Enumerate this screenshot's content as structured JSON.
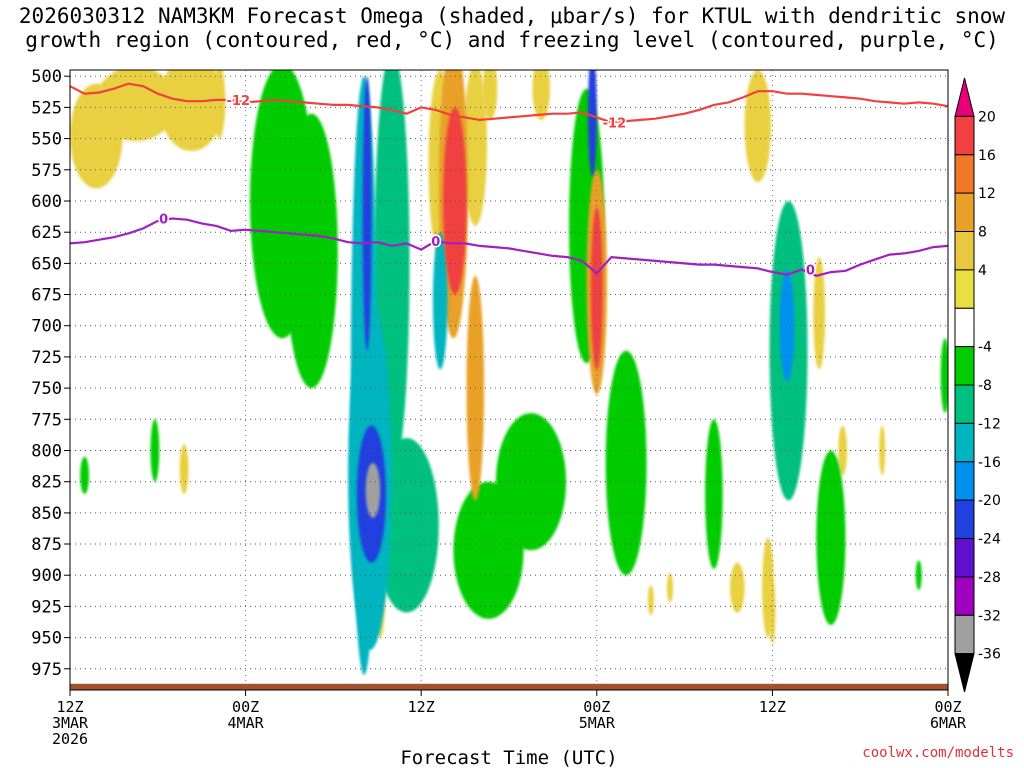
{
  "title": {
    "line1": "2026030312 NAM3KM Forecast Omega (shaded, μbar/s) for KTUL with dendritic snow",
    "line2": "growth region (contoured, red, °C) and freezing level (contoured, purple, °C)"
  },
  "credit": "coolwx.com/modelts",
  "chart_data": {
    "type": "heatmap",
    "title": "2026030312 NAM3KM Forecast Omega (shaded, μbar/s) for KTUL with dendritic snow growth region (contoured, red, °C) and freezing level (contoured, purple, °C)",
    "xlabel": "Forecast Time (UTC)",
    "ylabel": "",
    "x_ticks": [
      {
        "h": 0,
        "lines": [
          "12Z",
          "3MAR",
          "2026"
        ]
      },
      {
        "h": 12,
        "lines": [
          "00Z",
          "4MAR"
        ]
      },
      {
        "h": 24,
        "lines": [
          "12Z"
        ]
      },
      {
        "h": 36,
        "lines": [
          "00Z",
          "5MAR"
        ]
      },
      {
        "h": 48,
        "lines": [
          "12Z"
        ]
      },
      {
        "h": 60,
        "lines": [
          "00Z",
          "6MAR"
        ]
      }
    ],
    "xlim_hours": [
      0,
      60
    ],
    "y_ticks": [
      500,
      525,
      550,
      575,
      600,
      625,
      650,
      675,
      700,
      725,
      750,
      775,
      800,
      825,
      850,
      875,
      900,
      925,
      950,
      975
    ],
    "ylim": [
      992,
      495
    ],
    "colorbar": {
      "labels": [
        "20",
        "16",
        "12",
        "8",
        "4",
        "-4",
        "-8",
        "-12",
        "-16",
        "-20",
        "-24",
        "-28",
        "-32",
        "-36"
      ],
      "bins": [
        {
          "color": "#e8007a"
        },
        {
          "color": "#f04040"
        },
        {
          "color": "#f07828"
        },
        {
          "color": "#e8a028"
        },
        {
          "color": "#e8c840"
        },
        {
          "color": "#e8e040"
        },
        {
          "color": "#ffffff"
        },
        {
          "color": "#00cc00"
        },
        {
          "color": "#00c080"
        },
        {
          "color": "#00b4c0"
        },
        {
          "color": "#0090f0"
        },
        {
          "color": "#2040e0"
        },
        {
          "color": "#6010d0"
        },
        {
          "color": "#a000c0"
        },
        {
          "color": "#a0a0a0"
        },
        {
          "color": "#000000"
        }
      ]
    },
    "omega_features": [
      {
        "hour": 1.8,
        "p": 548,
        "dh": 1.8,
        "dp": 42,
        "value": 6
      },
      {
        "hour": 4.5,
        "p": 522,
        "dh": 2.8,
        "dp": 30,
        "value": 5
      },
      {
        "hour": 8.3,
        "p": 522,
        "dh": 2.2,
        "dp": 38,
        "value": 5
      },
      {
        "hour": 14.5,
        "p": 600,
        "dh": 2.2,
        "dp": 110,
        "value": -6
      },
      {
        "hour": 16.5,
        "p": 640,
        "dh": 1.8,
        "dp": 110,
        "value": -6
      },
      {
        "hour": 20.1,
        "p": 740,
        "dh": 0.9,
        "dp": 240,
        "value": -12
      },
      {
        "hour": 20.5,
        "p": 820,
        "dh": 1.5,
        "dp": 140,
        "value": -14
      },
      {
        "hour": 20.6,
        "p": 835,
        "dh": 1.0,
        "dp": 55,
        "value": -22
      },
      {
        "hour": 20.7,
        "p": 832,
        "dh": 0.5,
        "dp": 22,
        "value": -34
      },
      {
        "hour": 20.3,
        "p": 610,
        "dh": 0.3,
        "dp": 110,
        "value": -20
      },
      {
        "hour": 22.0,
        "p": 650,
        "dh": 1.2,
        "dp": 170,
        "value": -8
      },
      {
        "hour": 23.0,
        "p": 860,
        "dh": 2.2,
        "dp": 70,
        "value": -8
      },
      {
        "hour": 25.3,
        "p": 570,
        "dh": 0.8,
        "dp": 75,
        "value": 6
      },
      {
        "hour": 26.2,
        "p": 590,
        "dh": 1.0,
        "dp": 120,
        "value": 8
      },
      {
        "hour": 26.3,
        "p": 600,
        "dh": 0.8,
        "dp": 75,
        "value": 18
      },
      {
        "hour": 27.7,
        "p": 555,
        "dh": 0.8,
        "dp": 65,
        "value": 5
      },
      {
        "hour": 27.7,
        "p": 750,
        "dh": 0.6,
        "dp": 90,
        "value": 11
      },
      {
        "hour": 25.3,
        "p": 680,
        "dh": 0.5,
        "dp": 55,
        "value": -12
      },
      {
        "hour": 28.6,
        "p": 880,
        "dh": 2.4,
        "dp": 55,
        "value": -7
      },
      {
        "hour": 31.5,
        "p": 825,
        "dh": 2.4,
        "dp": 55,
        "value": -6
      },
      {
        "hour": 35.7,
        "p": 530,
        "dh": 0.3,
        "dp": 50,
        "value": -20
      },
      {
        "hour": 35.3,
        "p": 620,
        "dh": 1.2,
        "dp": 110,
        "value": -6
      },
      {
        "hour": 36.0,
        "p": 665,
        "dh": 0.7,
        "dp": 90,
        "value": 8
      },
      {
        "hour": 36.0,
        "p": 670,
        "dh": 0.4,
        "dp": 65,
        "value": 18
      },
      {
        "hour": 38.0,
        "p": 810,
        "dh": 1.4,
        "dp": 90,
        "value": -6
      },
      {
        "hour": 47.0,
        "p": 540,
        "dh": 0.9,
        "dp": 45,
        "value": 5
      },
      {
        "hour": 49.1,
        "p": 720,
        "dh": 1.3,
        "dp": 120,
        "value": -10
      },
      {
        "hour": 49.0,
        "p": 700,
        "dh": 0.5,
        "dp": 45,
        "value": -16
      },
      {
        "hour": 51.2,
        "p": 690,
        "dh": 0.4,
        "dp": 45,
        "value": 6
      },
      {
        "hour": 52.0,
        "p": 870,
        "dh": 1.0,
        "dp": 70,
        "value": -7
      },
      {
        "hour": 52.8,
        "p": 800,
        "dh": 0.3,
        "dp": 20,
        "value": 5
      },
      {
        "hour": 47.7,
        "p": 910,
        "dh": 0.4,
        "dp": 40,
        "value": 5
      },
      {
        "hour": 45.6,
        "p": 910,
        "dh": 0.5,
        "dp": 20,
        "value": 5
      },
      {
        "hour": 44.0,
        "p": 835,
        "dh": 0.6,
        "dp": 60,
        "value": -7
      },
      {
        "hour": 48.0,
        "p": 930,
        "dh": 0.2,
        "dp": 25,
        "value": 5
      },
      {
        "hour": 5.8,
        "p": 800,
        "dh": 0.3,
        "dp": 25,
        "value": -6
      },
      {
        "hour": 1.0,
        "p": 820,
        "dh": 0.3,
        "dp": 15,
        "value": -6
      },
      {
        "hour": 39.7,
        "p": 920,
        "dh": 0.2,
        "dp": 12,
        "value": 5
      },
      {
        "hour": 41.0,
        "p": 910,
        "dh": 0.2,
        "dp": 12,
        "value": 5
      },
      {
        "hour": 59.8,
        "p": 740,
        "dh": 0.3,
        "dp": 30,
        "value": -6
      },
      {
        "hour": 58.0,
        "p": 900,
        "dh": 0.2,
        "dp": 12,
        "value": -6
      },
      {
        "hour": 55.5,
        "p": 800,
        "dh": 0.2,
        "dp": 20,
        "value": 5
      },
      {
        "hour": 10.2,
        "p": 520,
        "dh": 0.4,
        "dp": 30,
        "value": 5
      },
      {
        "hour": 32.2,
        "p": 510,
        "dh": 0.6,
        "dp": 25,
        "value": 5
      },
      {
        "hour": 28.7,
        "p": 510,
        "dh": 0.5,
        "dp": 25,
        "value": 5
      },
      {
        "hour": 7.8,
        "p": 815,
        "dh": 0.3,
        "dp": 20,
        "value": 5
      },
      {
        "hour": 21.2,
        "p": 925,
        "dh": 0.3,
        "dp": 25,
        "value": 5
      }
    ],
    "isotherms": [
      {
        "name": "-12 °C",
        "color": "#f04040",
        "label": "-12",
        "points": [
          [
            0,
            508
          ],
          [
            1,
            514
          ],
          [
            2,
            513
          ],
          [
            3,
            510
          ],
          [
            4,
            506
          ],
          [
            5,
            508
          ],
          [
            6,
            514
          ],
          [
            7,
            518
          ],
          [
            8,
            520
          ],
          [
            9,
            520
          ],
          [
            10,
            519
          ],
          [
            11,
            519
          ],
          [
            12,
            521
          ],
          [
            13,
            520
          ],
          [
            14,
            519
          ],
          [
            15,
            520
          ],
          [
            16,
            521
          ],
          [
            17,
            522
          ],
          [
            18,
            523
          ],
          [
            19,
            523
          ],
          [
            20,
            524
          ],
          [
            21,
            525
          ],
          [
            22,
            527
          ],
          [
            23,
            530
          ],
          [
            24,
            525
          ],
          [
            25,
            527
          ],
          [
            26,
            531
          ],
          [
            27,
            533
          ],
          [
            28,
            535
          ],
          [
            29,
            534
          ],
          [
            30,
            533
          ],
          [
            31,
            532
          ],
          [
            32,
            531
          ],
          [
            33,
            530
          ],
          [
            34,
            530
          ],
          [
            35,
            529
          ],
          [
            36,
            533
          ],
          [
            37,
            537
          ],
          [
            38,
            536
          ],
          [
            39,
            535
          ],
          [
            40,
            534
          ],
          [
            41,
            532
          ],
          [
            42,
            530
          ],
          [
            43,
            527
          ],
          [
            44,
            523
          ],
          [
            45,
            521
          ],
          [
            46,
            517
          ],
          [
            47,
            512
          ],
          [
            48,
            512
          ],
          [
            49,
            514
          ],
          [
            50,
            514
          ],
          [
            51,
            515
          ],
          [
            52,
            516
          ],
          [
            53,
            517
          ],
          [
            54,
            518
          ],
          [
            55,
            520
          ],
          [
            56,
            521
          ],
          [
            57,
            522
          ],
          [
            58,
            521
          ],
          [
            59,
            522
          ],
          [
            60,
            524
          ]
        ],
        "label_positions": [
          [
            11.5,
            519
          ],
          [
            37.2,
            537
          ]
        ]
      },
      {
        "name": "0 °C",
        "color": "#a020c0",
        "label": "0",
        "points": [
          [
            0,
            634
          ],
          [
            1,
            633
          ],
          [
            2,
            631
          ],
          [
            3,
            629
          ],
          [
            4,
            626
          ],
          [
            5,
            622
          ],
          [
            6,
            616
          ],
          [
            7,
            614
          ],
          [
            8,
            615
          ],
          [
            9,
            618
          ],
          [
            10,
            620
          ],
          [
            11,
            624
          ],
          [
            12,
            623
          ],
          [
            13,
            624
          ],
          [
            14,
            625
          ],
          [
            15,
            626
          ],
          [
            16,
            627
          ],
          [
            17,
            628
          ],
          [
            18,
            630
          ],
          [
            19,
            633
          ],
          [
            20,
            634
          ],
          [
            21,
            633
          ],
          [
            22,
            636
          ],
          [
            23,
            634
          ],
          [
            24,
            639
          ],
          [
            25,
            632
          ],
          [
            26,
            634
          ],
          [
            27,
            634
          ],
          [
            28,
            636
          ],
          [
            29,
            637
          ],
          [
            30,
            638
          ],
          [
            31,
            640
          ],
          [
            32,
            642
          ],
          [
            33,
            644
          ],
          [
            34,
            645
          ],
          [
            35,
            648
          ],
          [
            36,
            658
          ],
          [
            37,
            645
          ],
          [
            38,
            646
          ],
          [
            39,
            647
          ],
          [
            40,
            648
          ],
          [
            41,
            649
          ],
          [
            42,
            650
          ],
          [
            43,
            651
          ],
          [
            44,
            651
          ],
          [
            45,
            652
          ],
          [
            46,
            653
          ],
          [
            47,
            654
          ],
          [
            48,
            657
          ],
          [
            49,
            659
          ],
          [
            50,
            655
          ],
          [
            51,
            660
          ],
          [
            52,
            657
          ],
          [
            53,
            656
          ],
          [
            54,
            651
          ],
          [
            55,
            647
          ],
          [
            56,
            643
          ],
          [
            57,
            642
          ],
          [
            58,
            640
          ],
          [
            59,
            637
          ],
          [
            60,
            636
          ]
        ],
        "label_positions": [
          [
            6.4,
            614
          ],
          [
            25.0,
            632
          ],
          [
            50.6,
            655
          ]
        ]
      }
    ],
    "ground": {
      "top_p": 987,
      "color": "#a0522d"
    },
    "grid": "dotted"
  }
}
